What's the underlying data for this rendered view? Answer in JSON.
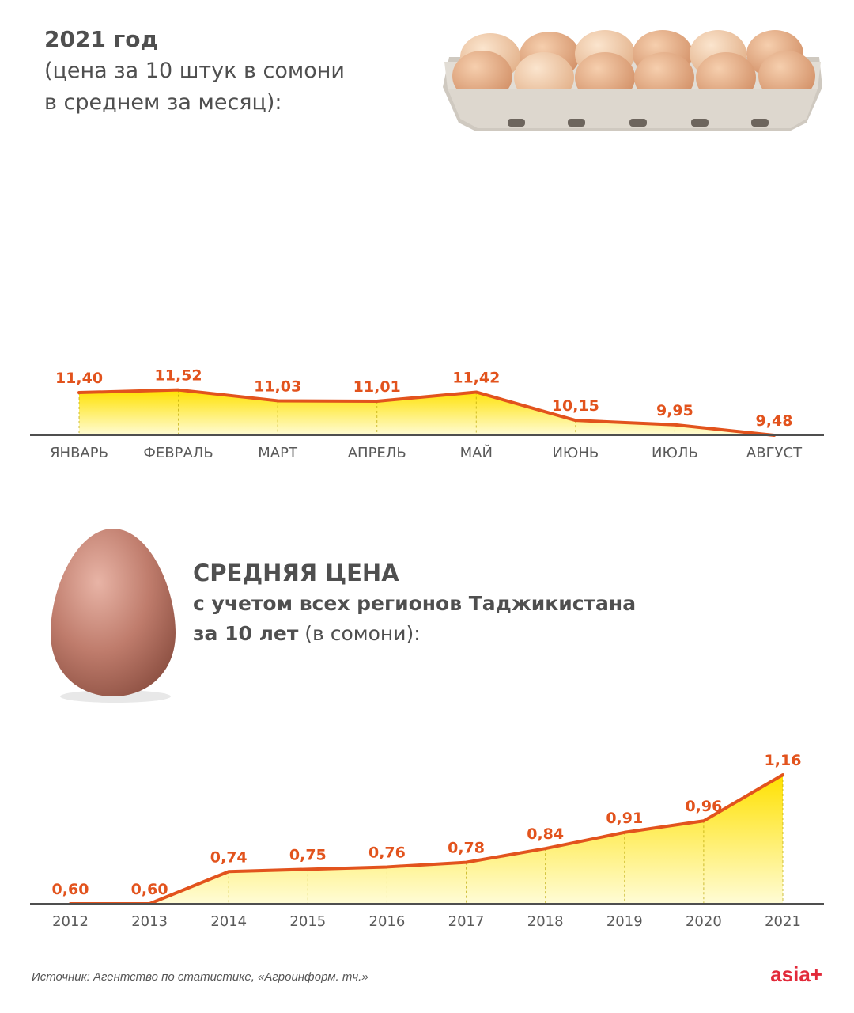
{
  "header": {
    "title": "2021 год",
    "subtitle_line1": "(цена за 10 штук в сомони",
    "subtitle_line2": "в среднем за месяц):"
  },
  "header2": {
    "title": "СРЕДНЯЯ ЦЕНА",
    "line1": "с учетом всех регионов Таджикистана",
    "line2_bold": "за 10 лет",
    "line2_light": " (в сомони):"
  },
  "footer": {
    "source": "Источник: Агентство по статистике, «Агроинформ. тч.»",
    "logo": "asia+"
  },
  "colors": {
    "line": "#e2531d",
    "label": "#e2531d",
    "fill_top": "#ffe100",
    "fill_bottom": "#fffcd6",
    "axis": "#4f4f4f",
    "tick": "#5a5a5a"
  },
  "chart_data": [
    {
      "type": "area",
      "title": "2021 год",
      "categories": [
        "ЯНВАРЬ",
        "ФЕВРАЛЬ",
        "МАРТ",
        "АПРЕЛЬ",
        "МАЙ",
        "ИЮНЬ",
        "ИЮЛЬ",
        "АВГУСТ"
      ],
      "values": [
        11.4,
        11.52,
        11.03,
        11.01,
        11.42,
        10.15,
        9.95,
        9.48
      ],
      "labels": [
        "11,40",
        "11,52",
        "11,03",
        "11,01",
        "11,42",
        "10,15",
        "9,95",
        "9,48"
      ],
      "grid": false
    },
    {
      "type": "area",
      "title": "СРЕДНЯЯ ЦЕНА",
      "categories": [
        "2012",
        "2013",
        "2014",
        "2015",
        "2016",
        "2017",
        "2018",
        "2019",
        "2020",
        "2021"
      ],
      "values": [
        0.6,
        0.6,
        0.74,
        0.75,
        0.76,
        0.78,
        0.84,
        0.91,
        0.96,
        1.16
      ],
      "labels": [
        "0,60",
        "0,60",
        "0,74",
        "0,75",
        "0,76",
        "0,78",
        "0,84",
        "0,91",
        "0,96",
        "1,16"
      ],
      "grid": false
    }
  ]
}
